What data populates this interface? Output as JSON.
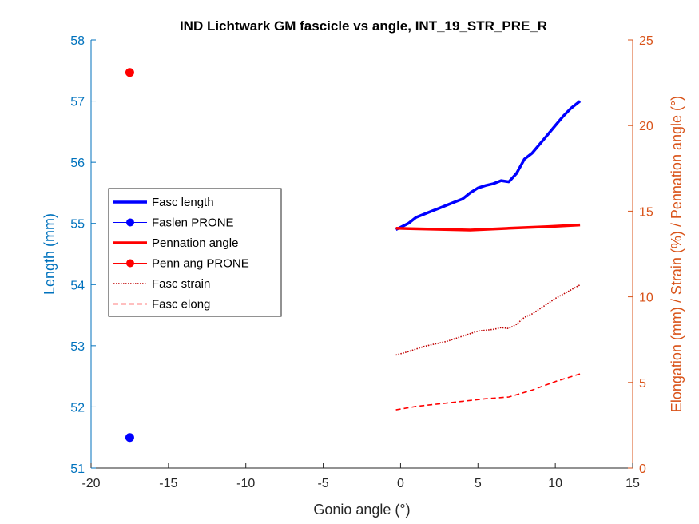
{
  "chart_data": {
    "type": "line",
    "title": "IND Lichtwark GM fascicle vs angle, INT_19_STR_PRE_R",
    "xlabel": "Gonio angle (°)",
    "ylabel_left": "Length (mm)",
    "ylabel_right": "Elongation (mm) / Strain (%) / Pennation angle (°)",
    "xlim": [
      -20,
      15
    ],
    "ylim_left": [
      51,
      58
    ],
    "ylim_right": [
      0,
      25
    ],
    "xticks": [
      "-20",
      "-15",
      "-10",
      "-5",
      "0",
      "5",
      "10",
      "15"
    ],
    "yticks_left": [
      "51",
      "52",
      "53",
      "54",
      "55",
      "56",
      "57",
      "58"
    ],
    "yticks_right": [
      "0",
      "5",
      "10",
      "15",
      "20",
      "25"
    ],
    "grid": false,
    "legend_position": "left",
    "colors": {
      "left_axis": "#0072BD",
      "right_axis": "#D95319",
      "blue": "#0000FF",
      "red": "#FF0000",
      "dark_red": "#C00000"
    },
    "series": [
      {
        "name": "Fasc length",
        "axis": "left",
        "style": "solid-thick",
        "color": "#0000FF",
        "x": [
          -0.3,
          0.5,
          1.0,
          1.5,
          2.0,
          2.5,
          3.0,
          3.5,
          4.0,
          4.5,
          5.0,
          5.5,
          6.0,
          6.5,
          7.0,
          7.5,
          8.0,
          8.5,
          9.0,
          9.5,
          10.0,
          10.5,
          11.0,
          11.6
        ],
        "y": [
          54.9,
          55.0,
          55.1,
          55.15,
          55.2,
          55.25,
          55.3,
          55.35,
          55.4,
          55.5,
          55.58,
          55.62,
          55.65,
          55.7,
          55.68,
          55.82,
          56.05,
          56.15,
          56.3,
          56.45,
          56.6,
          56.75,
          56.88,
          57.0
        ]
      },
      {
        "name": "Faslen PRONE",
        "axis": "left",
        "style": "marker",
        "color": "#0000FF",
        "x": [
          -17.5
        ],
        "y": [
          51.5
        ]
      },
      {
        "name": "Pennation angle",
        "axis": "right",
        "style": "solid-thick",
        "color": "#FF0000",
        "x": [
          -0.3,
          2.0,
          4.5,
          7.0,
          9.5,
          11.6
        ],
        "y": [
          14.0,
          13.95,
          13.9,
          14.0,
          14.1,
          14.2
        ]
      },
      {
        "name": "Penn ang PRONE",
        "axis": "right",
        "style": "marker",
        "color": "#FF0000",
        "x": [
          -17.5
        ],
        "y": [
          23.1
        ]
      },
      {
        "name": "Fasc strain",
        "axis": "right",
        "style": "dotted",
        "color": "#C00000",
        "x": [
          -0.3,
          0.5,
          1.0,
          1.5,
          2.0,
          2.5,
          3.0,
          3.5,
          4.0,
          4.5,
          5.0,
          5.5,
          6.0,
          6.5,
          7.0,
          7.5,
          8.0,
          8.5,
          9.0,
          9.5,
          10.0,
          10.5,
          11.0,
          11.6
        ],
        "y": [
          6.6,
          6.8,
          6.95,
          7.1,
          7.2,
          7.3,
          7.4,
          7.55,
          7.7,
          7.85,
          8.0,
          8.05,
          8.1,
          8.2,
          8.15,
          8.4,
          8.8,
          9.0,
          9.3,
          9.6,
          9.9,
          10.15,
          10.4,
          10.7
        ]
      },
      {
        "name": "Fasc elong",
        "axis": "right",
        "style": "dashed",
        "color": "#FF0000",
        "x": [
          -0.3,
          1.0,
          2.5,
          4.0,
          5.5,
          7.0,
          8.5,
          10.0,
          11.6
        ],
        "y": [
          3.4,
          3.6,
          3.75,
          3.9,
          4.05,
          4.15,
          4.55,
          5.05,
          5.5
        ]
      }
    ]
  }
}
